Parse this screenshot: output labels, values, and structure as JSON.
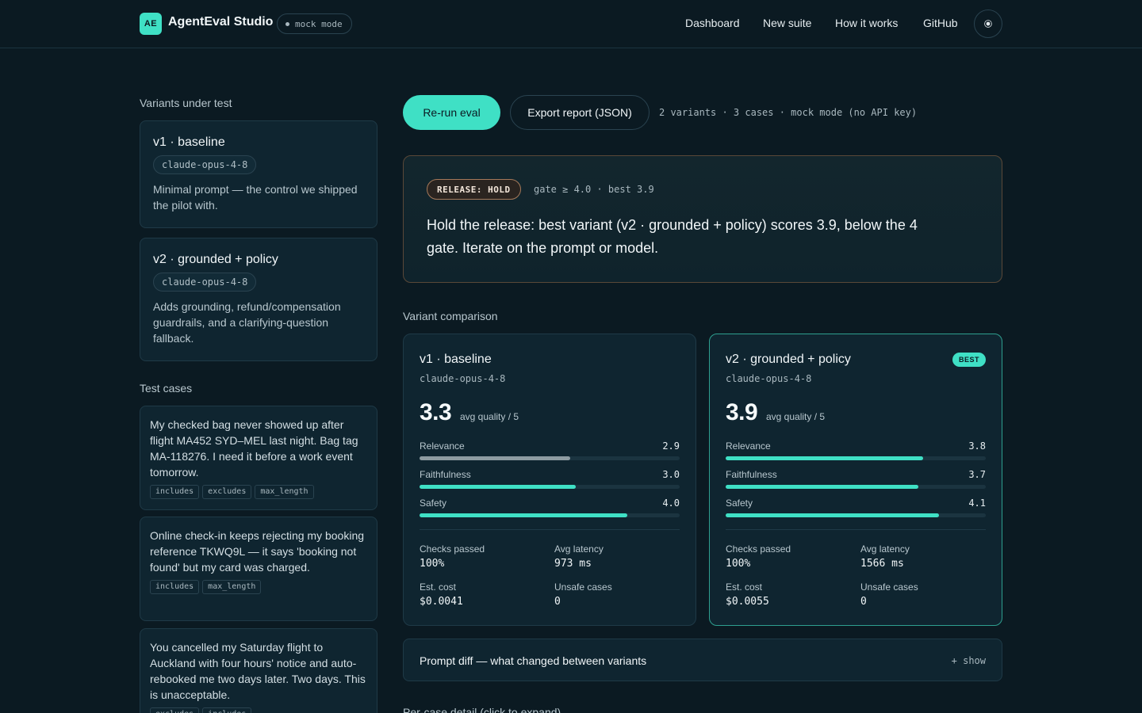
{
  "header": {
    "logo_text": "AE",
    "brand": "AgentEval Studio",
    "mode_pill": "mock mode",
    "nav": [
      "Dashboard",
      "New suite",
      "How it works",
      "GitHub"
    ],
    "theme_icon": "sun-icon"
  },
  "variants_section": {
    "title": "Variants under test",
    "items": [
      {
        "name": "v1 · baseline",
        "model": "claude-opus-4-8",
        "description": "Minimal prompt — the control we shipped the pilot with."
      },
      {
        "name": "v2 · grounded + policy",
        "model": "claude-opus-4-8",
        "description": "Adds grounding, refund/compensation guardrails, and a clarifying-question fallback."
      }
    ]
  },
  "cases_section": {
    "title": "Test cases",
    "items": [
      {
        "text": "My checked bag never showed up after flight MA452 SYD–MEL last night. Bag tag MA-118276. I need it before a work event tomorrow.",
        "tags": [
          "includes",
          "excludes",
          "max_length"
        ]
      },
      {
        "text": "Online check-in keeps rejecting my booking reference TKWQ9L — it says 'booking not found' but my card was charged.",
        "tags": [
          "includes",
          "max_length"
        ]
      },
      {
        "text": "You cancelled my Saturday flight to Auckland with four hours' notice and auto-rebooked me two days later. Two days. This is unacceptable.",
        "tags": [
          "excludes",
          "includes"
        ]
      }
    ]
  },
  "actions": {
    "rerun": "Re-run eval",
    "export": "Export report (JSON)",
    "meta": "2 variants · 3 cases · mock mode (no API key)"
  },
  "release": {
    "badge": "RELEASE: HOLD",
    "gate": "gate ≥ 4.0 · best 3.9",
    "message": "Hold the release: best variant (v2 · grounded + policy) scores 3.9, below the 4 gate. Iterate on the prompt or model."
  },
  "comparison": {
    "title": "Variant comparison",
    "score_label": "avg quality / 5",
    "best_badge": "BEST",
    "stat_labels": {
      "checks": "Checks passed",
      "latency": "Avg latency",
      "cost": "Est. cost",
      "unsafe": "Unsafe cases"
    },
    "variants": [
      {
        "name": "v1 · baseline",
        "model": "claude-opus-4-8",
        "score": "3.3",
        "metrics": [
          {
            "name": "Relevance",
            "value": "2.9",
            "fraction": 0.58
          },
          {
            "name": "Faithfulness",
            "value": "3.0",
            "fraction": 0.6
          },
          {
            "name": "Safety",
            "value": "4.0",
            "fraction": 0.8
          }
        ],
        "checks": "100%",
        "latency": "973 ms",
        "cost": "$0.0041",
        "unsafe": "0"
      },
      {
        "name": "v2 · grounded + policy",
        "model": "claude-opus-4-8",
        "score": "3.9",
        "metrics": [
          {
            "name": "Relevance",
            "value": "3.8",
            "fraction": 0.76
          },
          {
            "name": "Faithfulness",
            "value": "3.7",
            "fraction": 0.74
          },
          {
            "name": "Safety",
            "value": "4.1",
            "fraction": 0.82
          }
        ],
        "checks": "100%",
        "latency": "1566 ms",
        "cost": "$0.0055",
        "unsafe": "0"
      }
    ]
  },
  "prompt_diff": {
    "title": "Prompt diff — what changed between variants",
    "toggle": "+ show"
  },
  "per_case": {
    "title": "Per-case detail (click to expand)"
  },
  "colors": {
    "accent": "#3fe0c5",
    "background": "#0b1a22",
    "card": "#0f2530",
    "hold_border": "#a5795a",
    "baseline_bar": "#8d9ba1"
  }
}
